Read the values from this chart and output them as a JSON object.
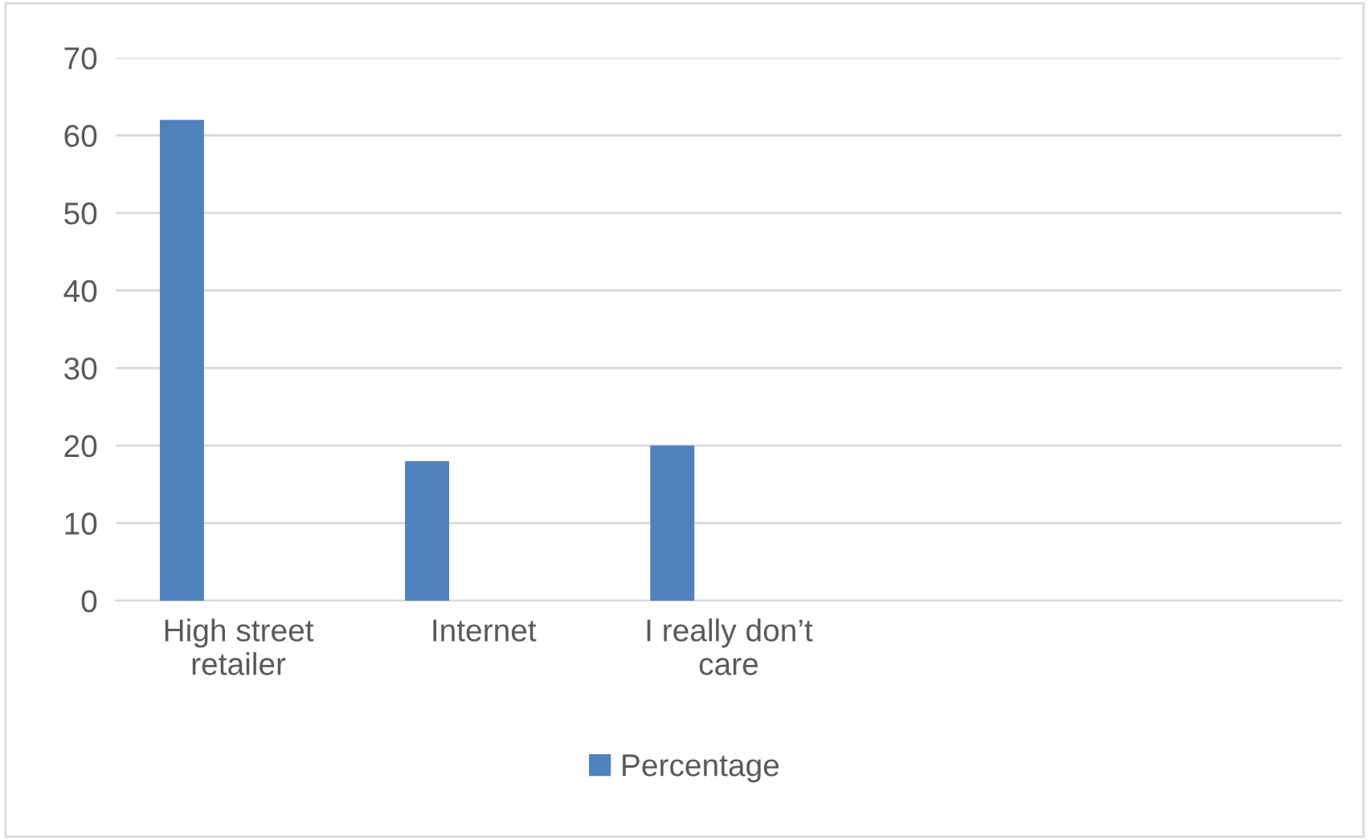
{
  "chart_data": {
    "type": "bar",
    "categories": [
      "High street retailer",
      "Internet",
      "I really don’t care",
      null,
      null
    ],
    "series": [
      {
        "name": "Percentage",
        "color": "#4f81bd",
        "values": [
          62,
          18,
          20,
          null,
          null
        ]
      }
    ],
    "ylim": [
      0,
      70
    ],
    "yticks": [
      0,
      10,
      20,
      30,
      40,
      50,
      60,
      70
    ],
    "grid": "y",
    "legend": "bottom"
  }
}
